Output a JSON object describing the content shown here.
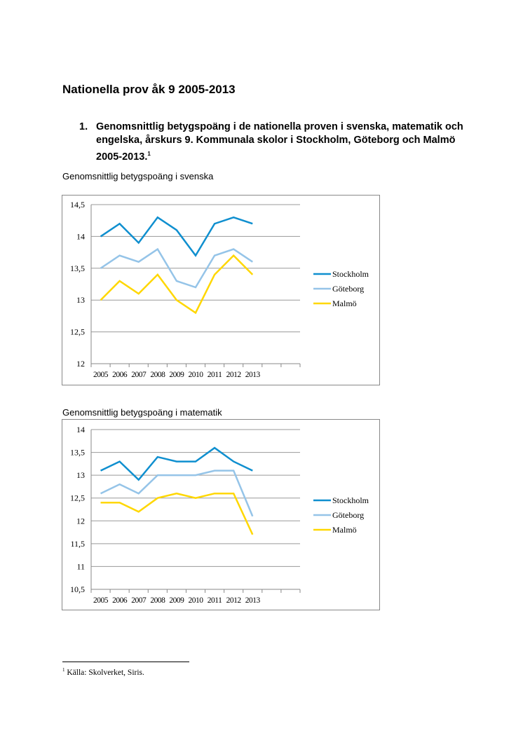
{
  "title": "Nationella prov åk 9 2005-2013",
  "section": {
    "number": "1.",
    "text": "Genomsnittlig betygspoäng i de nationella proven i svenska, matematik och engelska, årskurs 9. Kommunala skolor i Stockholm, Göteborg och Malmö 2005-2013.",
    "footnote_ref": "1"
  },
  "footnote": {
    "ref": "1",
    "text": "Källa: Skolverket, Siris."
  },
  "chart_data": [
    {
      "type": "line",
      "title": "Genomsnittlig betygspoäng i svenska",
      "categories": [
        "2005",
        "2006",
        "2007",
        "2008",
        "2009",
        "2010",
        "2011",
        "2012",
        "2013"
      ],
      "slots": 11,
      "yticks": [
        "12",
        "12,5",
        "13",
        "13,5",
        "14",
        "14,5"
      ],
      "ylim": [
        12,
        14.5
      ],
      "grid": true,
      "legend": "right",
      "series": [
        {
          "name": "Stockholm",
          "color": "#0f8fcf",
          "values": [
            14.0,
            14.2,
            13.9,
            14.3,
            14.1,
            13.7,
            14.2,
            14.3,
            14.2
          ]
        },
        {
          "name": "Göteborg",
          "color": "#95c4e8",
          "values": [
            13.5,
            13.7,
            13.6,
            13.8,
            13.3,
            13.2,
            13.7,
            13.8,
            13.6
          ]
        },
        {
          "name": "Malmö",
          "color": "#ffd700",
          "values": [
            13.0,
            13.3,
            13.1,
            13.4,
            13.0,
            12.8,
            13.4,
            13.7,
            13.4
          ]
        }
      ]
    },
    {
      "type": "line",
      "title": "Genomsnittlig betygspoäng i matematik",
      "categories": [
        "2005",
        "2006",
        "2007",
        "2008",
        "2009",
        "2010",
        "2011",
        "2012",
        "2013"
      ],
      "slots": 11,
      "yticks": [
        "10,5",
        "11",
        "11,5",
        "12",
        "12,5",
        "13",
        "13,5",
        "14"
      ],
      "ylim": [
        10.5,
        14
      ],
      "grid": true,
      "legend": "right",
      "series": [
        {
          "name": "Stockholm",
          "color": "#0f8fcf",
          "values": [
            13.1,
            13.3,
            12.9,
            13.4,
            13.3,
            13.3,
            13.6,
            13.3,
            13.1
          ]
        },
        {
          "name": "Göteborg",
          "color": "#95c4e8",
          "values": [
            12.6,
            12.8,
            12.6,
            13.0,
            13.0,
            13.0,
            13.1,
            13.1,
            12.1
          ]
        },
        {
          "name": "Malmö",
          "color": "#ffd700",
          "values": [
            12.4,
            12.4,
            12.2,
            12.5,
            12.6,
            12.5,
            12.6,
            12.6,
            11.7
          ]
        }
      ]
    }
  ]
}
